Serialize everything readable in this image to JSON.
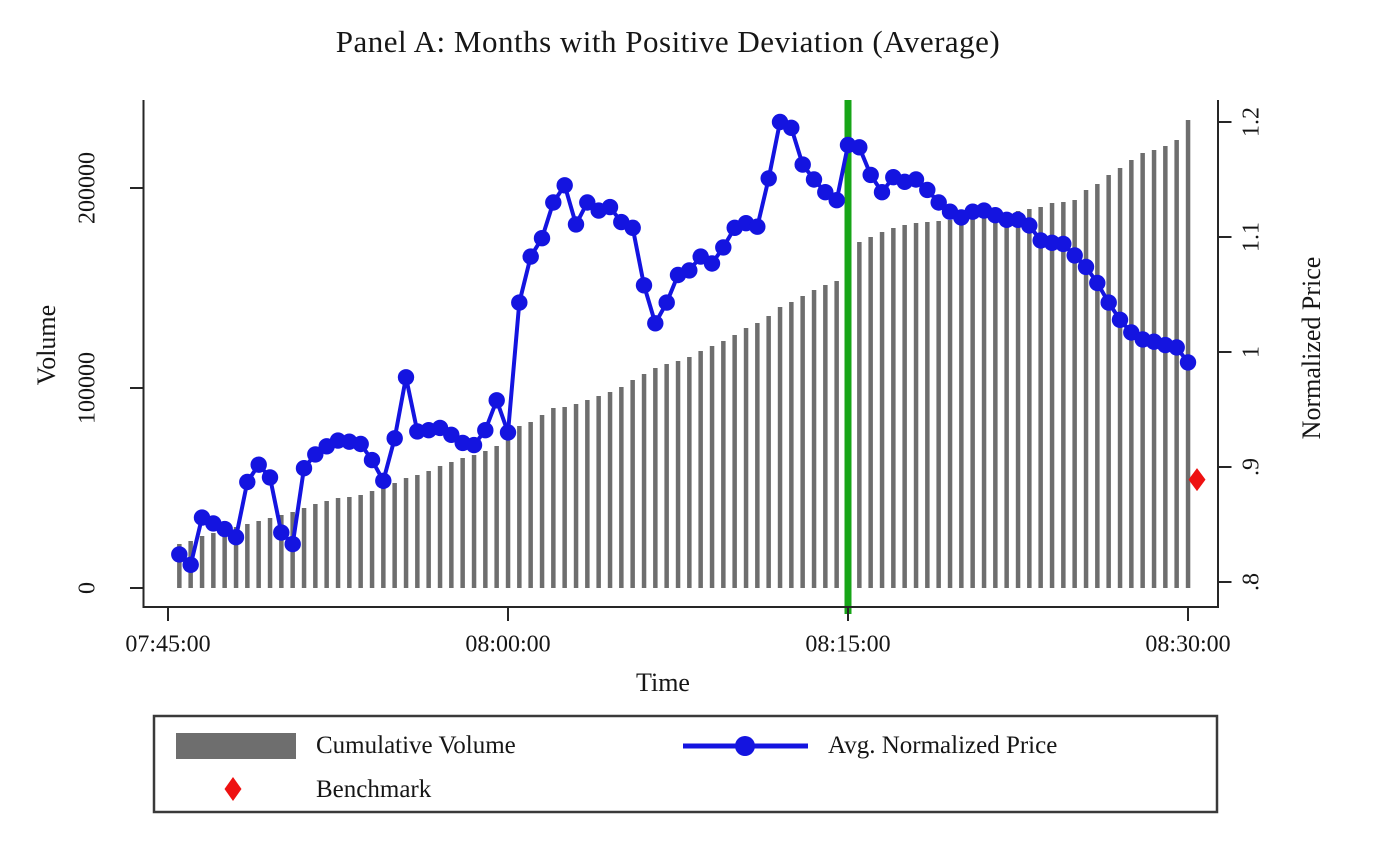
{
  "title": "Panel A: Months with Positive Deviation (Average)",
  "axes": {
    "left": {
      "title": "Volume",
      "tick_labels": [
        "0",
        "100000",
        "200000"
      ],
      "tick_values": [
        0,
        100000,
        200000
      ]
    },
    "right": {
      "title": "Normalized Price",
      "tick_labels": [
        "1.2",
        "1.1",
        "1",
        ".9",
        ".8"
      ],
      "tick_values": [
        1.2,
        1.1,
        1.0,
        0.9,
        0.8
      ]
    },
    "bottom": {
      "title": "Time",
      "tick_labels": [
        "07:45:00",
        "08:00:00",
        "08:15:00",
        "08:30:00"
      ],
      "tick_minutes": [
        0,
        15,
        30,
        45
      ]
    }
  },
  "legend": {
    "items": [
      {
        "label": "Cumulative Volume",
        "marker": "bar-swatch",
        "color": "#6e6e6e"
      },
      {
        "label": "Avg. Normalized Price",
        "marker": "line-circle",
        "color": "#1414e0"
      },
      {
        "label": "Benchmark",
        "marker": "diamond",
        "color": "#ee1111"
      }
    ]
  },
  "colors": {
    "bar": "#6e6e6e",
    "price_line": "#1414e0",
    "benchmark": "#ee1111",
    "event_line": "#17a517",
    "axis": "#262626"
  },
  "chart_data": {
    "type": "combo(bar+line+scatter)",
    "title": "Panel A: Months with Positive Deviation (Average)",
    "xlabel": "Time",
    "ylabel_left": "Volume",
    "ylabel_right": "Normalized Price",
    "x_start_time": "07:45:30",
    "x_interval_seconds": 30,
    "x_end_time": "08:30:00",
    "x_axis_ticks": [
      "07:45:00",
      "08:00:00",
      "08:15:00",
      "08:30:00"
    ],
    "ylim_left": [
      0,
      244000
    ],
    "ylim_right": [
      0.8,
      1.2
    ],
    "event_vline_time": "08:15:00",
    "grid": false,
    "legend_position": "bottom",
    "series": [
      {
        "name": "Cumulative Volume",
        "type": "bar",
        "axis": "left",
        "color": "#6e6e6e",
        "values": [
          22000,
          23500,
          26000,
          27500,
          29000,
          30500,
          32000,
          33500,
          35000,
          36500,
          38000,
          40000,
          42000,
          43500,
          45000,
          45500,
          46500,
          48500,
          50500,
          52500,
          55000,
          56500,
          58500,
          61000,
          63000,
          65000,
          66500,
          68500,
          71000,
          80000,
          81000,
          83000,
          86500,
          90000,
          90500,
          92000,
          94000,
          96000,
          98000,
          100500,
          104000,
          107000,
          110000,
          112000,
          113500,
          115500,
          118500,
          121000,
          123500,
          126500,
          130000,
          132500,
          136000,
          140500,
          143000,
          146000,
          149000,
          151500,
          153500,
          167500,
          173000,
          175500,
          178000,
          180000,
          181500,
          182500,
          183000,
          183500,
          184000,
          184500,
          185000,
          185500,
          186500,
          187500,
          188500,
          189500,
          190500,
          192500,
          193000,
          194000,
          199000,
          202000,
          206500,
          210000,
          214000,
          217500,
          219000,
          221000,
          224000,
          234000
        ]
      },
      {
        "name": "Avg. Normalized Price",
        "type": "line+marker",
        "axis": "right",
        "color": "#1414e0",
        "values": [
          0.824,
          0.815,
          0.856,
          0.851,
          0.846,
          0.839,
          0.887,
          0.902,
          0.891,
          0.843,
          0.833,
          0.899,
          0.911,
          0.918,
          0.923,
          0.922,
          0.92,
          0.906,
          0.888,
          0.925,
          0.978,
          0.931,
          0.932,
          0.934,
          0.928,
          0.921,
          0.919,
          0.932,
          0.958,
          0.93,
          1.043,
          1.083,
          1.099,
          1.13,
          1.145,
          1.111,
          1.13,
          1.123,
          1.126,
          1.113,
          1.108,
          1.058,
          1.025,
          1.043,
          1.067,
          1.071,
          1.083,
          1.077,
          1.091,
          1.108,
          1.112,
          1.109,
          1.151,
          1.2,
          1.195,
          1.163,
          1.15,
          1.139,
          1.132,
          1.18,
          1.178,
          1.154,
          1.139,
          1.152,
          1.148,
          1.15,
          1.141,
          1.13,
          1.122,
          1.117,
          1.122,
          1.123,
          1.119,
          1.115,
          1.115,
          1.11,
          1.097,
          1.095,
          1.094,
          1.084,
          1.074,
          1.06,
          1.043,
          1.028,
          1.017,
          1.011,
          1.009,
          1.006,
          1.004,
          0.991
        ]
      },
      {
        "name": "Benchmark",
        "type": "scatter",
        "axis": "right",
        "marker": "diamond",
        "color": "#ee1111",
        "x_time": "08:30:00",
        "value": 0.889
      }
    ]
  }
}
